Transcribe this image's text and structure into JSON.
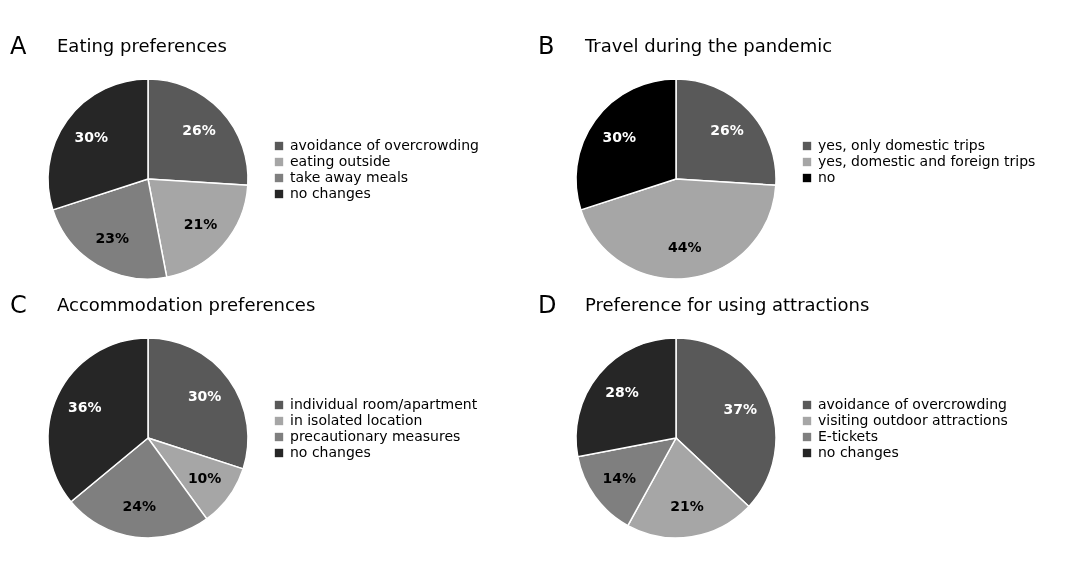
{
  "chart_data": [
    {
      "type": "pie",
      "title": "Eating preferences",
      "annotations": [
        "A"
      ],
      "categories": [
        "avoidance of overcrowding",
        "eating outside",
        "take away meals",
        "no changes"
      ],
      "values": [
        26,
        21,
        23,
        30
      ],
      "value_labels": [
        "26%",
        "21%",
        "23%",
        "30%"
      ],
      "colors": [
        "#595959",
        "#a6a6a6",
        "#7f7f7f",
        "#262626"
      ],
      "legend": "right"
    },
    {
      "type": "pie",
      "title": "Travel during the pandemic",
      "annotations": [
        "B"
      ],
      "categories": [
        "yes, only domestic trips",
        "yes, domestic and foreign trips",
        "no"
      ],
      "values": [
        26,
        44,
        30
      ],
      "value_labels": [
        "26%",
        "44%",
        "30%"
      ],
      "colors": [
        "#595959",
        "#a6a6a6",
        "#000000"
      ],
      "legend": "right"
    },
    {
      "type": "pie",
      "title": "Accommodation preferences",
      "annotations": [
        "C"
      ],
      "categories": [
        "individual room/apartment",
        "in isolated location",
        "precautionary measures",
        "no changes"
      ],
      "values": [
        30,
        10,
        24,
        36
      ],
      "value_labels": [
        "30%",
        "10%",
        "24%",
        "36%"
      ],
      "colors": [
        "#595959",
        "#a6a6a6",
        "#7f7f7f",
        "#262626"
      ],
      "legend": "right"
    },
    {
      "type": "pie",
      "title": "Preference for using attractions",
      "annotations": [
        "D"
      ],
      "categories": [
        "avoidance of overcrowding",
        "visiting outdoor attractions",
        "E-tickets",
        "no changes"
      ],
      "values": [
        37,
        21,
        14,
        28
      ],
      "value_labels": [
        "37%",
        "21%",
        "14%",
        "28%"
      ],
      "colors": [
        "#595959",
        "#a6a6a6",
        "#7f7f7f",
        "#262626"
      ],
      "legend": "right"
    }
  ]
}
